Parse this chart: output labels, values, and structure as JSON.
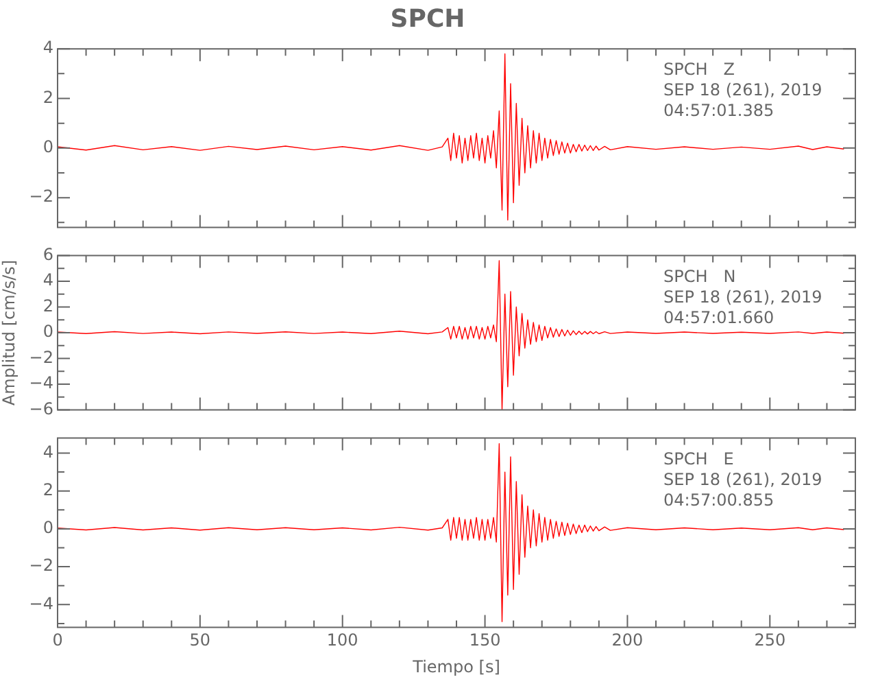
{
  "chart_data": [
    {
      "type": "line",
      "title": "SPCH",
      "annotations": [
        "SPCH   Z",
        "SEP 18 (261), 2019",
        "04:57:01.385"
      ],
      "xlim": [
        0,
        280
      ],
      "ylim": [
        -3.2,
        4
      ],
      "tick_labels": "y",
      "grid": false,
      "legend": false,
      "marker": "none",
      "xticks": [
        0,
        {
          "value": 10,
          "label": null
        },
        {
          "value": 20,
          "label": null
        },
        {
          "value": 30,
          "label": null
        },
        {
          "value": 40,
          "label": null
        },
        50,
        {
          "value": 60,
          "label": null
        },
        {
          "value": 70,
          "label": null
        },
        {
          "value": 80,
          "label": null
        },
        {
          "value": 90,
          "label": null
        },
        100,
        {
          "value": 110,
          "label": null
        },
        {
          "value": 120,
          "label": null
        },
        {
          "value": 130,
          "label": null
        },
        {
          "value": 140,
          "label": null
        },
        150,
        {
          "value": 160,
          "label": null
        },
        {
          "value": 170,
          "label": null
        },
        {
          "value": 180,
          "label": null
        },
        {
          "value": 190,
          "label": null
        },
        200,
        {
          "value": 210,
          "label": null
        },
        {
          "value": 220,
          "label": null
        },
        {
          "value": 230,
          "label": null
        },
        {
          "value": 240,
          "label": null
        },
        250,
        {
          "value": 260,
          "label": null
        },
        {
          "value": 270,
          "label": null
        },
        {
          "value": 280,
          "label": null
        }
      ],
      "yticks": [
        -2,
        {
          "value": -3,
          "label": null
        },
        {
          "value": -1,
          "label": null
        },
        0,
        {
          "value": 1,
          "label": null
        },
        2,
        {
          "value": 3,
          "label": null
        },
        4
      ],
      "x": [
        0,
        10,
        20,
        30,
        40,
        50,
        60,
        70,
        80,
        90,
        100,
        110,
        120,
        130,
        135,
        137,
        138,
        139,
        140,
        141,
        142,
        143,
        144,
        145,
        146,
        147,
        148,
        149,
        150,
        151,
        152,
        153,
        154,
        155,
        156,
        157,
        158,
        159,
        160,
        161,
        162,
        163,
        164,
        165,
        166,
        167,
        168,
        169,
        170,
        171,
        172,
        173,
        174,
        175,
        176,
        177,
        178,
        179,
        180,
        181,
        182,
        183,
        184,
        185,
        186,
        187,
        188,
        189,
        190,
        192,
        194,
        200,
        210,
        220,
        230,
        240,
        250,
        260,
        265,
        270,
        276
      ],
      "series": [
        {
          "color": "#ff0000",
          "values": [
            0.05,
            -0.08,
            0.1,
            -0.07,
            0.06,
            -0.09,
            0.07,
            -0.06,
            0.08,
            -0.07,
            0.06,
            -0.08,
            0.1,
            -0.09,
            0.05,
            0.4,
            -0.5,
            0.6,
            -0.4,
            0.5,
            -0.6,
            0.4,
            -0.5,
            0.5,
            -0.4,
            0.6,
            -0.5,
            0.4,
            -0.6,
            0.5,
            -0.4,
            0.7,
            -0.8,
            1.5,
            -2.5,
            3.8,
            -2.9,
            2.6,
            -2.2,
            1.8,
            -1.5,
            1.2,
            -1.0,
            0.9,
            -0.8,
            0.7,
            -0.6,
            0.6,
            -0.5,
            0.4,
            -0.4,
            0.35,
            -0.3,
            0.3,
            -0.25,
            0.25,
            -0.2,
            0.2,
            -0.2,
            0.15,
            -0.15,
            0.15,
            -0.12,
            0.12,
            -0.1,
            0.1,
            -0.1,
            0.08,
            -0.08,
            0.07,
            -0.07,
            0.06,
            -0.05,
            0.05,
            -0.05,
            0.04,
            -0.05,
            0.08,
            -0.06,
            0.05,
            -0.04
          ]
        }
      ]
    },
    {
      "type": "line",
      "ylabel": "Amplitud [cm/s/s]",
      "annotations": [
        "SPCH   N",
        "SEP 18 (261), 2019",
        "04:57:01.660"
      ],
      "xlim": [
        0,
        280
      ],
      "ylim": [
        -6,
        6
      ],
      "tick_labels": "y",
      "grid": false,
      "legend": false,
      "marker": "none",
      "xticks": [
        0,
        {
          "value": 10,
          "label": null
        },
        {
          "value": 20,
          "label": null
        },
        {
          "value": 30,
          "label": null
        },
        {
          "value": 40,
          "label": null
        },
        50,
        {
          "value": 60,
          "label": null
        },
        {
          "value": 70,
          "label": null
        },
        {
          "value": 80,
          "label": null
        },
        {
          "value": 90,
          "label": null
        },
        100,
        {
          "value": 110,
          "label": null
        },
        {
          "value": 120,
          "label": null
        },
        {
          "value": 130,
          "label": null
        },
        {
          "value": 140,
          "label": null
        },
        150,
        {
          "value": 160,
          "label": null
        },
        {
          "value": 170,
          "label": null
        },
        {
          "value": 180,
          "label": null
        },
        {
          "value": 190,
          "label": null
        },
        200,
        {
          "value": 210,
          "label": null
        },
        {
          "value": 220,
          "label": null
        },
        {
          "value": 230,
          "label": null
        },
        {
          "value": 240,
          "label": null
        },
        250,
        {
          "value": 260,
          "label": null
        },
        {
          "value": 270,
          "label": null
        },
        {
          "value": 280,
          "label": null
        }
      ],
      "yticks": [
        -6,
        {
          "value": -5,
          "label": null
        },
        -4,
        {
          "value": -3,
          "label": null
        },
        -2,
        {
          "value": -1,
          "label": null
        },
        0,
        {
          "value": 1,
          "label": null
        },
        2,
        {
          "value": 3,
          "label": null
        },
        4,
        {
          "value": 5,
          "label": null
        },
        6
      ],
      "x": [
        0,
        10,
        20,
        30,
        40,
        50,
        60,
        70,
        80,
        90,
        100,
        110,
        120,
        130,
        135,
        137,
        138,
        139,
        140,
        141,
        142,
        143,
        144,
        145,
        146,
        147,
        148,
        149,
        150,
        151,
        152,
        153,
        154,
        155,
        156,
        157,
        158,
        159,
        160,
        161,
        162,
        163,
        164,
        165,
        166,
        167,
        168,
        169,
        170,
        171,
        172,
        173,
        174,
        175,
        176,
        177,
        178,
        179,
        180,
        181,
        182,
        183,
        184,
        185,
        186,
        187,
        188,
        189,
        190,
        192,
        194,
        200,
        210,
        220,
        230,
        240,
        250,
        260,
        265,
        270,
        276
      ],
      "series": [
        {
          "color": "#ff0000",
          "values": [
            0.05,
            -0.07,
            0.08,
            -0.06,
            0.05,
            -0.08,
            0.06,
            -0.05,
            0.07,
            -0.06,
            0.05,
            -0.07,
            0.12,
            -0.08,
            0.06,
            0.4,
            -0.5,
            0.5,
            -0.4,
            0.5,
            -0.5,
            0.4,
            -0.5,
            0.5,
            -0.4,
            0.5,
            -0.5,
            0.4,
            -0.5,
            0.5,
            -0.4,
            0.6,
            -0.7,
            5.6,
            -6.0,
            3.0,
            -4.2,
            3.2,
            -3.3,
            2.0,
            -1.8,
            1.5,
            -1.2,
            1.0,
            -0.9,
            0.8,
            -0.7,
            0.6,
            -0.6,
            0.5,
            -0.4,
            0.4,
            -0.35,
            0.3,
            -0.3,
            0.25,
            -0.25,
            0.2,
            -0.2,
            0.15,
            -0.15,
            0.12,
            -0.12,
            0.1,
            -0.1,
            0.1,
            -0.08,
            0.08,
            -0.08,
            0.07,
            -0.06,
            0.05,
            -0.05,
            0.05,
            -0.05,
            0.04,
            -0.05,
            0.06,
            -0.05,
            0.05,
            -0.04
          ]
        }
      ]
    },
    {
      "type": "line",
      "xlabel": "Tiempo [s]",
      "annotations": [
        "SPCH   E",
        "SEP 18 (261), 2019",
        "04:57:00.855"
      ],
      "xlim": [
        0,
        280
      ],
      "ylim": [
        -5.2,
        4.8
      ],
      "grid": false,
      "legend": false,
      "marker": "none",
      "xticks": [
        0,
        {
          "value": 10,
          "label": null
        },
        {
          "value": 20,
          "label": null
        },
        {
          "value": 30,
          "label": null
        },
        {
          "value": 40,
          "label": null
        },
        50,
        {
          "value": 60,
          "label": null
        },
        {
          "value": 70,
          "label": null
        },
        {
          "value": 80,
          "label": null
        },
        {
          "value": 90,
          "label": null
        },
        100,
        {
          "value": 110,
          "label": null
        },
        {
          "value": 120,
          "label": null
        },
        {
          "value": 130,
          "label": null
        },
        {
          "value": 140,
          "label": null
        },
        150,
        {
          "value": 160,
          "label": null
        },
        {
          "value": 170,
          "label": null
        },
        {
          "value": 180,
          "label": null
        },
        {
          "value": 190,
          "label": null
        },
        200,
        {
          "value": 210,
          "label": null
        },
        {
          "value": 220,
          "label": null
        },
        {
          "value": 230,
          "label": null
        },
        {
          "value": 240,
          "label": null
        },
        250,
        {
          "value": 260,
          "label": null
        },
        {
          "value": 270,
          "label": null
        },
        {
          "value": 280,
          "label": null
        }
      ],
      "yticks": [
        {
          "value": -5,
          "label": null
        },
        -4,
        {
          "value": -3,
          "label": null
        },
        -2,
        {
          "value": -1,
          "label": null
        },
        0,
        {
          "value": 1,
          "label": null
        },
        2,
        {
          "value": 3,
          "label": null
        },
        4
      ],
      "x": [
        0,
        10,
        20,
        30,
        40,
        50,
        60,
        70,
        80,
        90,
        100,
        110,
        120,
        130,
        135,
        137,
        138,
        139,
        140,
        141,
        142,
        143,
        144,
        145,
        146,
        147,
        148,
        149,
        150,
        151,
        152,
        153,
        154,
        155,
        156,
        157,
        158,
        159,
        160,
        161,
        162,
        163,
        164,
        165,
        166,
        167,
        168,
        169,
        170,
        171,
        172,
        173,
        174,
        175,
        176,
        177,
        178,
        179,
        180,
        181,
        182,
        183,
        184,
        185,
        186,
        187,
        188,
        189,
        190,
        192,
        194,
        200,
        210,
        220,
        230,
        240,
        250,
        260,
        265,
        270,
        276
      ],
      "series": [
        {
          "color": "#ff0000",
          "values": [
            0.04,
            -0.06,
            0.07,
            -0.06,
            0.05,
            -0.07,
            0.06,
            -0.05,
            0.06,
            -0.05,
            0.05,
            -0.06,
            0.08,
            -0.07,
            0.05,
            0.5,
            -0.6,
            0.6,
            -0.5,
            0.6,
            -0.6,
            0.5,
            -0.6,
            0.5,
            -0.5,
            0.6,
            -0.6,
            0.5,
            -0.6,
            0.5,
            -0.5,
            0.6,
            -0.7,
            4.5,
            -4.9,
            3.0,
            -3.5,
            3.8,
            -3.2,
            2.5,
            -2.4,
            1.8,
            -1.5,
            1.2,
            -1.0,
            1.0,
            -0.9,
            0.8,
            -0.7,
            0.6,
            -0.6,
            0.5,
            -0.5,
            0.4,
            -0.4,
            0.35,
            -0.35,
            0.3,
            -0.3,
            0.25,
            -0.25,
            0.2,
            -0.2,
            0.2,
            -0.15,
            0.15,
            -0.12,
            0.12,
            -0.1,
            0.1,
            -0.08,
            0.06,
            -0.05,
            0.05,
            -0.05,
            0.04,
            -0.05,
            0.06,
            -0.05,
            0.05,
            -0.04
          ]
        }
      ]
    }
  ]
}
